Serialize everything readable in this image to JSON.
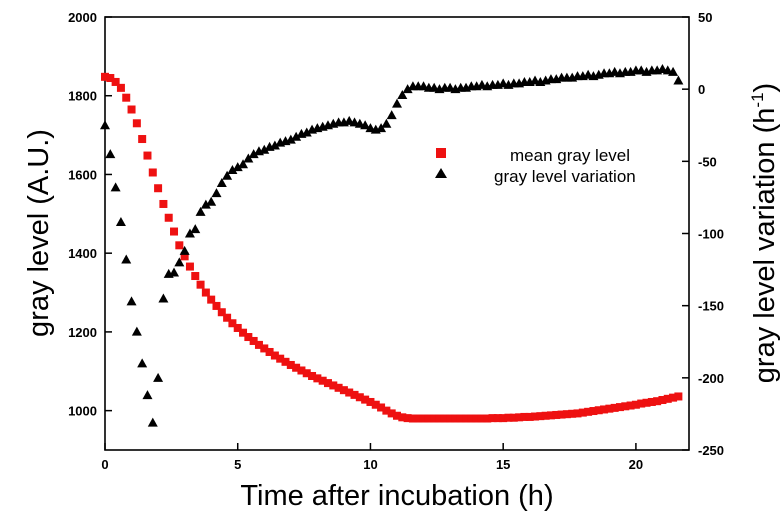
{
  "chart_data": {
    "type": "scatter",
    "title": "",
    "xlabel": "Time after incubation (h)",
    "ylabel_left": "gray level (A.U.)",
    "ylabel_right_main": "gray level variation (h",
    "ylabel_right_sup": "-1",
    "ylabel_right_close": ")",
    "xlim": [
      0,
      22
    ],
    "ylim_left": [
      900,
      2000
    ],
    "ylim_right": [
      -250,
      50
    ],
    "x_ticks": [
      0,
      5,
      10,
      15,
      20
    ],
    "x_tick_labels": [
      "0",
      "5",
      "10",
      "15",
      "20"
    ],
    "y_left_ticks": [
      1000,
      1200,
      1400,
      1600,
      1800,
      2000
    ],
    "y_left_tick_labels": [
      "1000",
      "1200",
      "1400",
      "1600",
      "1800",
      "2000"
    ],
    "y_right_ticks": [
      -250,
      -200,
      -150,
      -100,
      -50,
      0,
      50
    ],
    "y_right_tick_labels": [
      "-250",
      "-200",
      "-150",
      "-100",
      "-50",
      "0",
      "50"
    ],
    "grid": false,
    "legend_position": "right-center",
    "series": [
      {
        "name": "mean gray level",
        "axis": "left",
        "marker": "square",
        "color": "#ee1111",
        "x": [
          0,
          0.2,
          0.4,
          0.6,
          0.8,
          1.0,
          1.2,
          1.4,
          1.6,
          1.8,
          2.0,
          2.2,
          2.4,
          2.6,
          2.8,
          3.0,
          3.2,
          3.4,
          3.6,
          3.8,
          4.0,
          4.2,
          4.4,
          4.6,
          4.8,
          5.0,
          5.2,
          5.4,
          5.6,
          5.8,
          6.0,
          6.2,
          6.4,
          6.6,
          6.8,
          7.0,
          7.2,
          7.4,
          7.6,
          7.8,
          8.0,
          8.2,
          8.4,
          8.6,
          8.8,
          9.0,
          9.2,
          9.4,
          9.6,
          9.8,
          10.0,
          10.2,
          10.4,
          10.6,
          10.8,
          11.0,
          11.2,
          11.4,
          11.6,
          11.8,
          12.0,
          12.2,
          12.4,
          12.6,
          12.8,
          13.0,
          13.2,
          13.4,
          13.6,
          13.8,
          14.0,
          14.2,
          14.4,
          14.6,
          14.8,
          15.0,
          15.2,
          15.4,
          15.6,
          15.8,
          16.0,
          16.2,
          16.4,
          16.6,
          16.8,
          17.0,
          17.2,
          17.4,
          17.6,
          17.8,
          18.0,
          18.2,
          18.4,
          18.6,
          18.8,
          19.0,
          19.2,
          19.4,
          19.6,
          19.8,
          20.0,
          20.2,
          20.4,
          20.6,
          20.8,
          21.0,
          21.2,
          21.4,
          21.6
        ],
        "values": [
          1848,
          1845,
          1835,
          1820,
          1795,
          1765,
          1730,
          1690,
          1648,
          1605,
          1565,
          1525,
          1490,
          1455,
          1420,
          1392,
          1366,
          1342,
          1320,
          1300,
          1282,
          1266,
          1250,
          1236,
          1222,
          1210,
          1198,
          1187,
          1177,
          1167,
          1158,
          1149,
          1140,
          1132,
          1124,
          1116,
          1109,
          1102,
          1095,
          1088,
          1082,
          1076,
          1070,
          1064,
          1058,
          1052,
          1046,
          1040,
          1034,
          1028,
          1022,
          1015,
          1008,
          1000,
          993,
          987,
          983,
          981,
          980,
          980,
          980,
          980,
          980,
          980,
          980,
          980,
          980,
          980,
          980,
          980,
          980,
          980,
          980,
          981,
          981,
          981,
          982,
          982,
          983,
          984,
          984,
          985,
          986,
          987,
          988,
          989,
          990,
          991,
          992,
          993,
          995,
          997,
          999,
          1001,
          1003,
          1005,
          1007,
          1009,
          1011,
          1013,
          1015,
          1018,
          1020,
          1022,
          1024,
          1027,
          1030,
          1033,
          1036
        ]
      },
      {
        "name": "gray level variation",
        "axis": "right",
        "marker": "triangle",
        "color": "#000000",
        "x": [
          0,
          0.2,
          0.4,
          0.6,
          0.8,
          1.0,
          1.2,
          1.4,
          1.6,
          1.8,
          2.0,
          2.2,
          2.4,
          2.6,
          2.8,
          3.0,
          3.2,
          3.4,
          3.6,
          3.8,
          4.0,
          4.2,
          4.4,
          4.6,
          4.8,
          5.0,
          5.2,
          5.4,
          5.6,
          5.8,
          6.0,
          6.2,
          6.4,
          6.6,
          6.8,
          7.0,
          7.2,
          7.4,
          7.6,
          7.8,
          8.0,
          8.2,
          8.4,
          8.6,
          8.8,
          9.0,
          9.2,
          9.4,
          9.6,
          9.8,
          10.0,
          10.2,
          10.4,
          10.6,
          10.8,
          11.0,
          11.2,
          11.4,
          11.6,
          11.8,
          12.0,
          12.2,
          12.4,
          12.6,
          12.8,
          13.0,
          13.2,
          13.4,
          13.6,
          13.8,
          14.0,
          14.2,
          14.4,
          14.6,
          14.8,
          15.0,
          15.2,
          15.4,
          15.6,
          15.8,
          16.0,
          16.2,
          16.4,
          16.6,
          16.8,
          17.0,
          17.2,
          17.4,
          17.6,
          17.8,
          18.0,
          18.2,
          18.4,
          18.6,
          18.8,
          19.0,
          19.2,
          19.4,
          19.6,
          19.8,
          20.0,
          20.2,
          20.4,
          20.6,
          20.8,
          21.0,
          21.2,
          21.4,
          21.6
        ],
        "values": [
          -25,
          -45,
          -68,
          -92,
          -118,
          -147,
          -168,
          -190,
          -212,
          -231,
          -200,
          -145,
          -128,
          -127,
          -120,
          -112,
          -100,
          -97,
          -85,
          -80,
          -78,
          -72,
          -65,
          -60,
          -56,
          -54,
          -52,
          -48,
          -45,
          -43,
          -42,
          -40,
          -39,
          -37,
          -36,
          -35,
          -33,
          -31,
          -30,
          -28,
          -27,
          -26,
          -25,
          -24,
          -23,
          -23,
          -22,
          -23,
          -24,
          -25,
          -27,
          -28,
          -27,
          -24,
          -18,
          -10,
          -4,
          0,
          2,
          2,
          2,
          1,
          1,
          0,
          1,
          1,
          0,
          1,
          1,
          2,
          2,
          3,
          2,
          3,
          3,
          4,
          3,
          4,
          4,
          5,
          5,
          6,
          5,
          6,
          7,
          7,
          8,
          8,
          8,
          9,
          9,
          10,
          9,
          10,
          11,
          11,
          12,
          11,
          12,
          12,
          13,
          13,
          12,
          13,
          13,
          14,
          13,
          12,
          6
        ]
      }
    ]
  }
}
